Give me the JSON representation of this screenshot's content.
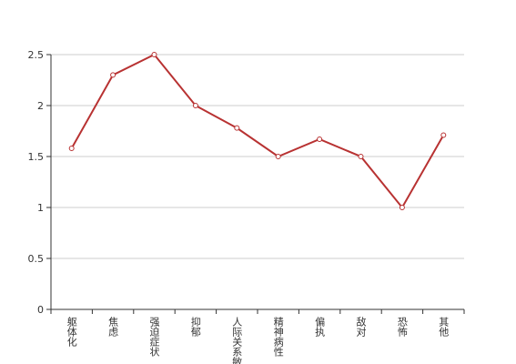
{
  "chart_data": {
    "type": "line",
    "categories": [
      "躯体化",
      "焦虑",
      "强迫症状",
      "抑郁",
      "人际关系敏感",
      "精神病性",
      "偏执",
      "敌对",
      "恐怖",
      "其他"
    ],
    "values": [
      1.58,
      2.3,
      2.5,
      2.0,
      1.78,
      1.5,
      1.67,
      1.5,
      1.0,
      1.71
    ],
    "color": "#b83232",
    "ylim": [
      0,
      2.5
    ],
    "yticks": [
      0,
      0.5,
      1,
      1.5,
      2,
      2.5
    ],
    "grid": true
  }
}
